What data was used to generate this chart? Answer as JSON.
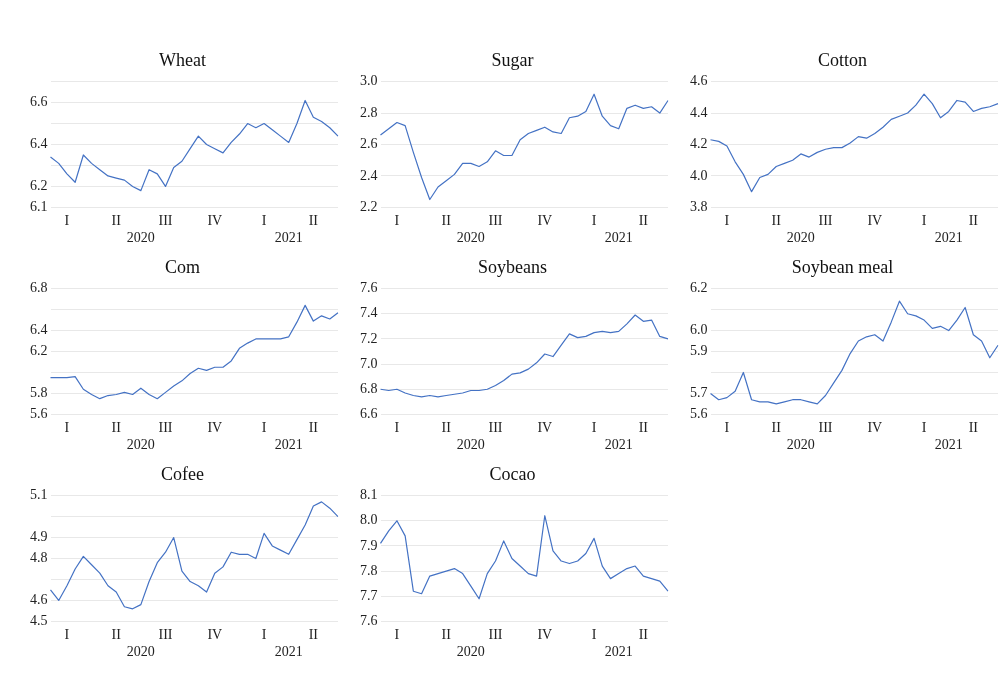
{
  "chart_data": [
    {
      "type": "line",
      "title": "Wheat",
      "color": "#4472c4",
      "grid": "y",
      "marker": "none",
      "ylim": [
        6.1,
        6.7
      ],
      "yticks": [
        6.1,
        6.2,
        {
          "value": 6.3,
          "label": null
        },
        6.4,
        {
          "value": 6.5,
          "label": null
        },
        6.6,
        {
          "value": 6.7,
          "label": null
        }
      ],
      "categories": [
        null,
        null,
        "I",
        null,
        null,
        null,
        null,
        null,
        "II",
        null,
        null,
        "\n2020",
        null,
        null,
        "III",
        null,
        null,
        null,
        null,
        null,
        "IV",
        null,
        null,
        null,
        null,
        null,
        "I",
        null,
        null,
        "\n2021",
        null,
        null,
        "II",
        null,
        null,
        null
      ],
      "values": [
        6.34,
        6.31,
        6.26,
        6.22,
        6.35,
        6.31,
        6.28,
        6.25,
        6.24,
        6.23,
        6.2,
        6.18,
        6.28,
        6.26,
        6.2,
        6.29,
        6.32,
        6.38,
        6.44,
        6.4,
        6.38,
        6.36,
        6.41,
        6.45,
        6.5,
        6.48,
        6.5,
        6.47,
        6.44,
        6.41,
        6.5,
        6.61,
        6.53,
        6.51,
        6.48,
        6.44
      ]
    },
    {
      "type": "line",
      "title": "Sugar",
      "color": "#4472c4",
      "grid": "y",
      "marker": "none",
      "ylim": [
        2.2,
        3.0
      ],
      "yticks": [
        2.2,
        2.4,
        2.6,
        2.8,
        {
          "value": 3,
          "label": "3.0"
        }
      ],
      "categories": [
        null,
        null,
        "I",
        null,
        null,
        null,
        null,
        null,
        "II",
        null,
        null,
        "\n2020",
        null,
        null,
        "III",
        null,
        null,
        null,
        null,
        null,
        "IV",
        null,
        null,
        null,
        null,
        null,
        "I",
        null,
        null,
        "\n2021",
        null,
        null,
        "II",
        null,
        null,
        null
      ],
      "values": [
        2.66,
        2.7,
        2.74,
        2.72,
        2.55,
        2.39,
        2.25,
        2.33,
        2.37,
        2.41,
        2.48,
        2.48,
        2.46,
        2.49,
        2.56,
        2.53,
        2.53,
        2.63,
        2.67,
        2.69,
        2.71,
        2.68,
        2.67,
        2.77,
        2.78,
        2.81,
        2.92,
        2.78,
        2.72,
        2.7,
        2.83,
        2.85,
        2.83,
        2.84,
        2.8,
        2.88
      ]
    },
    {
      "type": "line",
      "title": "Cotton",
      "color": "#4472c4",
      "grid": "y",
      "marker": "none",
      "ylim": [
        3.8,
        4.6
      ],
      "yticks": [
        3.8,
        {
          "value": 4,
          "label": "4.0"
        },
        4.2,
        4.4,
        4.6
      ],
      "categories": [
        null,
        null,
        "I",
        null,
        null,
        null,
        null,
        null,
        "II",
        null,
        null,
        "\n2020",
        null,
        null,
        "III",
        null,
        null,
        null,
        null,
        null,
        "IV",
        null,
        null,
        null,
        null,
        null,
        "I",
        null,
        null,
        "\n2021",
        null,
        null,
        "II",
        null,
        null,
        null
      ],
      "values": [
        4.23,
        4.22,
        4.19,
        4.09,
        4.01,
        3.9,
        3.99,
        4.01,
        4.06,
        4.08,
        4.1,
        4.14,
        4.12,
        4.15,
        4.17,
        4.18,
        4.18,
        4.21,
        4.25,
        4.24,
        4.27,
        4.31,
        4.36,
        4.38,
        4.4,
        4.45,
        4.52,
        4.46,
        4.37,
        4.41,
        4.48,
        4.47,
        4.41,
        4.43,
        4.44,
        4.46
      ]
    },
    {
      "type": "line",
      "title": "Com",
      "color": "#4472c4",
      "grid": "y",
      "marker": "none",
      "ylim": [
        5.6,
        6.8
      ],
      "yticks": [
        5.6,
        5.8,
        {
          "value": 6,
          "label": null
        },
        6.2,
        6.4,
        {
          "value": 6.6,
          "label": null
        },
        6.8
      ],
      "categories": [
        null,
        null,
        "I",
        null,
        null,
        null,
        null,
        null,
        "II",
        null,
        null,
        "\n2020",
        null,
        null,
        "III",
        null,
        null,
        null,
        null,
        null,
        "IV",
        null,
        null,
        null,
        null,
        null,
        "I",
        null,
        null,
        "\n2021",
        null,
        null,
        "II",
        null,
        null,
        null
      ],
      "values": [
        5.95,
        5.95,
        5.95,
        5.96,
        5.84,
        5.79,
        5.75,
        5.78,
        5.79,
        5.81,
        5.79,
        5.85,
        5.79,
        5.75,
        5.81,
        5.87,
        5.92,
        5.99,
        6.04,
        6.02,
        6.05,
        6.05,
        6.11,
        6.23,
        6.28,
        6.32,
        6.32,
        6.32,
        6.32,
        6.34,
        6.48,
        6.64,
        6.49,
        6.54,
        6.51,
        6.57
      ]
    },
    {
      "type": "line",
      "title": "Soybeans",
      "color": "#4472c4",
      "grid": "y",
      "marker": "none",
      "ylim": [
        6.6,
        7.6
      ],
      "yticks": [
        6.6,
        6.8,
        {
          "value": 7,
          "label": "7.0"
        },
        7.2,
        7.4,
        7.6
      ],
      "categories": [
        null,
        null,
        "I",
        null,
        null,
        null,
        null,
        null,
        "II",
        null,
        null,
        "\n2020",
        null,
        null,
        "III",
        null,
        null,
        null,
        null,
        null,
        "IV",
        null,
        null,
        null,
        null,
        null,
        "I",
        null,
        null,
        "\n2021",
        null,
        null,
        "II",
        null,
        null,
        null
      ],
      "values": [
        6.8,
        6.79,
        6.8,
        6.77,
        6.75,
        6.74,
        6.75,
        6.74,
        6.75,
        6.76,
        6.77,
        6.79,
        6.79,
        6.8,
        6.83,
        6.87,
        6.92,
        6.93,
        6.96,
        7.01,
        7.08,
        7.06,
        7.15,
        7.24,
        7.21,
        7.22,
        7.25,
        7.26,
        7.25,
        7.26,
        7.32,
        7.39,
        7.34,
        7.35,
        7.22,
        7.2
      ]
    },
    {
      "type": "line",
      "title": "Soybean meal",
      "color": "#4472c4",
      "grid": "y",
      "marker": "none",
      "ylim": [
        5.6,
        6.2
      ],
      "yticks": [
        5.6,
        5.7,
        {
          "value": 5.8,
          "label": null
        },
        5.9,
        {
          "value": 6,
          "label": "6.0"
        },
        {
          "value": 6.1,
          "label": null
        },
        6.2
      ],
      "categories": [
        null,
        null,
        "I",
        null,
        null,
        null,
        null,
        null,
        "II",
        null,
        null,
        "\n2020",
        null,
        null,
        "III",
        null,
        null,
        null,
        null,
        null,
        "IV",
        null,
        null,
        null,
        null,
        null,
        "I",
        null,
        null,
        "\n2021",
        null,
        null,
        "II",
        null,
        null,
        null
      ],
      "values": [
        5.7,
        5.67,
        5.68,
        5.71,
        5.8,
        5.67,
        5.66,
        5.66,
        5.65,
        5.66,
        5.67,
        5.67,
        5.66,
        5.65,
        5.69,
        5.75,
        5.81,
        5.89,
        5.95,
        5.97,
        5.98,
        5.95,
        6.04,
        6.14,
        6.08,
        6.07,
        6.05,
        6.01,
        6.02,
        6,
        6.05,
        6.11,
        5.98,
        5.95,
        5.87,
        5.93
      ]
    },
    {
      "type": "line",
      "title": "Cofee",
      "color": "#4472c4",
      "grid": "y",
      "marker": "none",
      "ylim": [
        4.5,
        5.1
      ],
      "yticks": [
        4.5,
        4.6,
        {
          "value": 4.7,
          "label": null
        },
        4.8,
        4.9,
        {
          "value": 5,
          "label": null
        },
        5.1
      ],
      "categories": [
        null,
        null,
        "I",
        null,
        null,
        null,
        null,
        null,
        "II",
        null,
        null,
        "\n2020",
        null,
        null,
        "III",
        null,
        null,
        null,
        null,
        null,
        "IV",
        null,
        null,
        null,
        null,
        null,
        "I",
        null,
        null,
        "\n2021",
        null,
        null,
        "II",
        null,
        null,
        null
      ],
      "values": [
        4.65,
        4.6,
        4.67,
        4.75,
        4.81,
        4.77,
        4.73,
        4.67,
        4.64,
        4.57,
        4.56,
        4.58,
        4.69,
        4.78,
        4.83,
        4.9,
        4.74,
        4.69,
        4.67,
        4.64,
        4.73,
        4.76,
        4.83,
        4.82,
        4.82,
        4.8,
        4.92,
        4.86,
        4.84,
        4.82,
        4.89,
        4.96,
        5.05,
        5.07,
        5.04,
        5
      ]
    },
    {
      "type": "line",
      "title": "Cocao",
      "color": "#4472c4",
      "grid": "y",
      "marker": "none",
      "ylim": [
        7.6,
        8.1
      ],
      "yticks": [
        7.6,
        7.7,
        7.8,
        7.9,
        {
          "value": 8,
          "label": "8.0"
        },
        8.1
      ],
      "categories": [
        null,
        null,
        "I",
        null,
        null,
        null,
        null,
        null,
        "II",
        null,
        null,
        "\n2020",
        null,
        null,
        "III",
        null,
        null,
        null,
        null,
        null,
        "IV",
        null,
        null,
        null,
        null,
        null,
        "I",
        null,
        null,
        "\n2021",
        null,
        null,
        "II",
        null,
        null,
        null
      ],
      "values": [
        7.91,
        7.96,
        8,
        7.94,
        7.72,
        7.71,
        7.78,
        7.79,
        7.8,
        7.81,
        7.79,
        7.74,
        7.69,
        7.79,
        7.84,
        7.92,
        7.85,
        7.82,
        7.79,
        7.78,
        8.02,
        7.88,
        7.84,
        7.83,
        7.84,
        7.87,
        7.93,
        7.82,
        7.77,
        7.79,
        7.81,
        7.82,
        7.78,
        7.77,
        7.76,
        7.72
      ]
    }
  ]
}
